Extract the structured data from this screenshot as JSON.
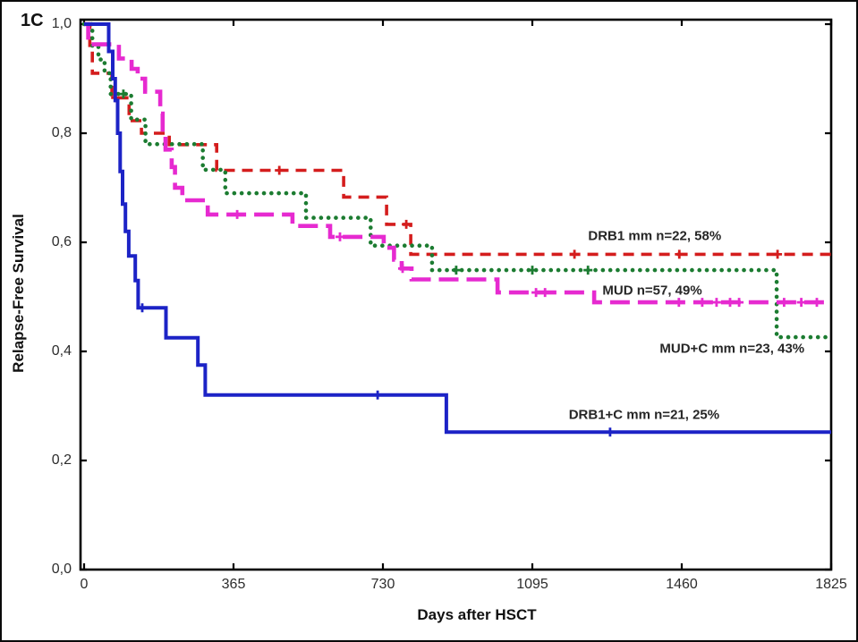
{
  "panel_label": "1C",
  "axes": {
    "y_title": "Relapse-Free Survival",
    "x_title": "Days after HSCT"
  },
  "chart_data": {
    "type": "line",
    "subtype": "kaplan-meier-step",
    "title": "",
    "xlabel": "Days after HSCT",
    "ylabel": "Relapse-Free Survival",
    "xlim": [
      0,
      1825
    ],
    "ylim": [
      0.0,
      1.0
    ],
    "grid": false,
    "legend_position": "inline-annotations",
    "x_ticks": [
      0,
      365,
      730,
      1095,
      1460,
      1825
    ],
    "x_tick_labels": [
      "0",
      "365",
      "730",
      "1095",
      "1460",
      "1825"
    ],
    "y_ticks": [
      1.0,
      0.8,
      0.6,
      0.4,
      0.2,
      0.0
    ],
    "y_tick_labels": [
      "1,0",
      "0,8",
      "0,6",
      "0,4",
      "0,2",
      "0,0"
    ],
    "series": [
      {
        "name": "drb1-mm",
        "label": "DRB1 mm n=22, 58%",
        "n": 22,
        "final_percent": 58,
        "color": "#d41d1d",
        "line_style": "dashed",
        "line_width": 3.6,
        "end_day": 1825,
        "steps": [
          [
            0,
            1.0
          ],
          [
            14,
            0.955
          ],
          [
            20,
            0.91
          ],
          [
            68,
            0.865
          ],
          [
            110,
            0.823
          ],
          [
            140,
            0.8
          ],
          [
            208,
            0.779
          ],
          [
            324,
            0.732
          ],
          [
            634,
            0.683
          ],
          [
            739,
            0.633
          ],
          [
            798,
            0.578
          ]
        ],
        "censor_marks": [
          [
            77,
            0.865
          ],
          [
            477,
            0.732
          ],
          [
            787,
            0.633
          ],
          [
            1198,
            0.578
          ],
          [
            1454,
            0.578
          ],
          [
            1694,
            0.578
          ]
        ],
        "label_anchor_day": 1394,
        "label_anchor_value": 0.611
      },
      {
        "name": "mud-c-mm",
        "label": "MUD+C mm n=23, 43%",
        "n": 23,
        "final_percent": 43,
        "color": "#1c7c31",
        "line_style": "dotted",
        "line_width": 4.6,
        "end_day": 1825,
        "steps": [
          [
            0,
            1.0
          ],
          [
            20,
            0.96
          ],
          [
            35,
            0.935
          ],
          [
            50,
            0.91
          ],
          [
            65,
            0.872
          ],
          [
            115,
            0.825
          ],
          [
            150,
            0.78
          ],
          [
            290,
            0.733
          ],
          [
            345,
            0.69
          ],
          [
            542,
            0.645
          ],
          [
            700,
            0.594
          ],
          [
            850,
            0.549
          ],
          [
            1692,
            0.426
          ]
        ],
        "censor_marks": [
          [
            96,
            0.872
          ],
          [
            909,
            0.549
          ],
          [
            1095,
            0.549
          ],
          [
            1231,
            0.549
          ]
        ],
        "label_anchor_day": 1583,
        "label_anchor_value": 0.405
      },
      {
        "name": "mud",
        "label": "MUD n=57, 49%",
        "n": 57,
        "final_percent": 49,
        "color": "#e62ad0",
        "line_style": "long-dash",
        "line_width": 4.6,
        "end_day": 1825,
        "steps": [
          [
            0,
            1.0
          ],
          [
            10,
            0.963
          ],
          [
            85,
            0.937
          ],
          [
            116,
            0.918
          ],
          [
            131,
            0.9
          ],
          [
            149,
            0.876
          ],
          [
            186,
            0.836
          ],
          [
            192,
            0.795
          ],
          [
            199,
            0.77
          ],
          [
            214,
            0.738
          ],
          [
            222,
            0.7
          ],
          [
            240,
            0.677
          ],
          [
            302,
            0.651
          ],
          [
            509,
            0.63
          ],
          [
            601,
            0.61
          ],
          [
            732,
            0.59
          ],
          [
            757,
            0.568
          ],
          [
            776,
            0.552
          ],
          [
            800,
            0.532
          ],
          [
            1010,
            0.508
          ],
          [
            1246,
            0.49
          ]
        ],
        "censor_marks": [
          [
            374,
            0.651
          ],
          [
            625,
            0.61
          ],
          [
            778,
            0.552
          ],
          [
            1104,
            0.508
          ],
          [
            1126,
            0.508
          ],
          [
            1453,
            0.49
          ],
          [
            1510,
            0.49
          ],
          [
            1545,
            0.49
          ],
          [
            1578,
            0.49
          ],
          [
            1600,
            0.49
          ],
          [
            1710,
            0.49
          ],
          [
            1752,
            0.49
          ],
          [
            1790,
            0.49
          ]
        ],
        "label_anchor_day": 1388,
        "label_anchor_value": 0.512
      },
      {
        "name": "drb1-c-mm",
        "label": "DRB1+C mm n=21, 25%",
        "n": 21,
        "final_percent": 25,
        "color": "#1c23c6",
        "line_style": "solid",
        "line_width": 4,
        "end_day": 1825,
        "steps": [
          [
            0,
            1.0
          ],
          [
            60,
            0.95
          ],
          [
            70,
            0.9
          ],
          [
            76,
            0.86
          ],
          [
            82,
            0.8
          ],
          [
            88,
            0.73
          ],
          [
            94,
            0.67
          ],
          [
            101,
            0.62
          ],
          [
            109,
            0.575
          ],
          [
            125,
            0.53
          ],
          [
            132,
            0.48
          ],
          [
            200,
            0.425
          ],
          [
            278,
            0.375
          ],
          [
            296,
            0.32
          ],
          [
            885,
            0.252
          ]
        ],
        "censor_marks": [
          [
            142,
            0.48
          ],
          [
            717,
            0.32
          ],
          [
            1285,
            0.252
          ]
        ],
        "label_anchor_day": 1368,
        "label_anchor_value": 0.284
      }
    ]
  }
}
